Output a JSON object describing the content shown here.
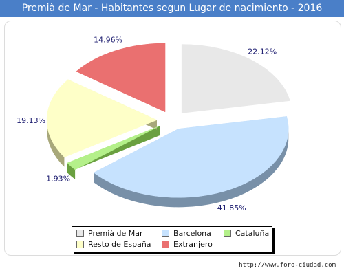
{
  "title": "Premià de Mar - Habitantes segun Lugar de nacimiento - 2016",
  "footer": "http://www.foro-ciudad.com",
  "chart_data": {
    "type": "pie",
    "title": "Premià de Mar - Habitantes segun Lugar de nacimiento - 2016",
    "categories": [
      "Premià de Mar",
      "Barcelona",
      "Cataluña",
      "Resto de España",
      "Extranjero"
    ],
    "values": [
      22.12,
      41.85,
      1.93,
      19.13,
      14.96
    ],
    "labels": [
      "22.12%",
      "41.85%",
      "1.93%",
      "19.13%",
      "14.96%"
    ],
    "colors": [
      "#e8e8e8",
      "#c6e2fe",
      "#b4f08a",
      "#feffc8",
      "#ea7070"
    ],
    "side_colors": [
      "#8c8c8c",
      "#7890a8",
      "#6aa040",
      "#a8a87a",
      "#961818"
    ],
    "legend_position": "bottom"
  },
  "legend": {
    "items": [
      {
        "label": "Premià de Mar",
        "color": "#e8e8e8"
      },
      {
        "label": "Barcelona",
        "color": "#c6e2fe"
      },
      {
        "label": "Cataluña",
        "color": "#b4f08a"
      },
      {
        "label": "Resto de España",
        "color": "#feffc8"
      },
      {
        "label": "Extranjero",
        "color": "#ea7070"
      }
    ]
  }
}
